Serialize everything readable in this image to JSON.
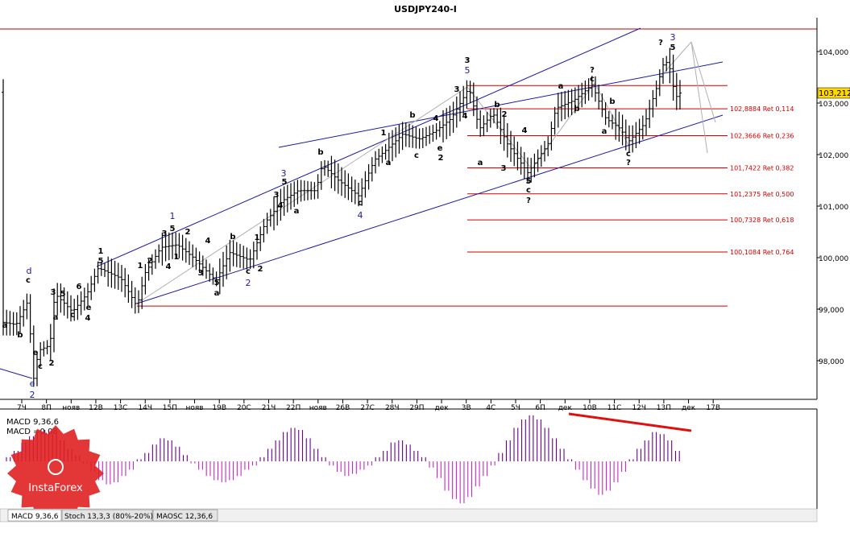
{
  "chart_data": {
    "type": "ohlc",
    "title": "USDJPY240-I",
    "y_ticks": [
      "104,000",
      "103,000",
      "102,000",
      "101,000",
      "100,000",
      "99,000",
      "98,000"
    ],
    "y_values": [
      104,
      103,
      102,
      101,
      100,
      99,
      98
    ],
    "ylim": [
      97.3,
      104.55
    ],
    "current_price": "103,212",
    "current_value": 103.212,
    "x_ticks": [
      "7Ч",
      "8П",
      "нояв",
      "12В",
      "13С",
      "14Ч",
      "15П",
      "нояв",
      "19В",
      "20С",
      "21Ч",
      "22П",
      "нояв",
      "26В",
      "27С",
      "28Ч",
      "29П",
      "дек",
      "3В",
      "4С",
      "5Ч",
      "6П",
      "дек",
      "10В",
      "11С",
      "12Ч",
      "13П",
      "дек",
      "17В"
    ],
    "retracements": [
      {
        "label": "102,8884 Ret 0,114",
        "value": 102.8884
      },
      {
        "label": "102,3666 Ret 0,236",
        "value": 102.3666
      },
      {
        "label": "101,7422 Ret 0,382",
        "value": 101.7422
      },
      {
        "label": "101,2375 Ret 0,500",
        "value": 101.2375
      },
      {
        "label": "100,7328 Ret 0,618",
        "value": 100.7328
      },
      {
        "label": "100,1084 Ret 0,764",
        "value": 100.1084
      }
    ],
    "horizontal_levels": [
      103.34,
      99.06
    ],
    "wave_labels_black": [
      "a",
      "b",
      "3",
      "c",
      "a",
      "e",
      "4",
      "d",
      "c",
      "2",
      "1",
      "5",
      "1",
      "2",
      "3",
      "4",
      "5",
      "3",
      "4",
      "1",
      "2",
      "b",
      "a",
      "c",
      "2",
      "3",
      "5",
      "4",
      "3",
      "1",
      "4",
      "a",
      "4",
      "1",
      "b",
      "a",
      "c",
      "b",
      "c",
      "e",
      "2",
      "3",
      "5",
      "3",
      "4",
      "b",
      "a",
      "5",
      "c",
      "?",
      "2",
      "4",
      "3",
      "a",
      "b",
      "?",
      "a",
      "c",
      "b",
      "a",
      "b",
      "?",
      "c",
      "?",
      "?",
      "5"
    ],
    "wave_labels_blue": [
      "d",
      "2",
      "1",
      "2",
      "3",
      "4",
      "3",
      "5",
      "3"
    ],
    "indicator": {
      "name_line1": "MACD 9,36,6",
      "name_line2": "MACD =0,08",
      "histogram": [
        0.2,
        0.5,
        0.9,
        1.2,
        1.4,
        1.5,
        1.3,
        1.0,
        0.6,
        0.3,
        -0.1,
        -0.5,
        -0.9,
        -1.1,
        -1.0,
        -0.7,
        -0.4,
        0.1,
        0.4,
        0.8,
        1.1,
        1.0,
        0.7,
        0.3,
        -0.1,
        -0.4,
        -0.7,
        -0.9,
        -1.0,
        -0.9,
        -0.7,
        -0.4,
        -0.2,
        0.2,
        0.6,
        1.0,
        1.4,
        1.6,
        1.5,
        1.1,
        0.6,
        0.2,
        -0.2,
        -0.5,
        -0.7,
        -0.6,
        -0.4,
        -0.2,
        0.2,
        0.5,
        0.9,
        1.0,
        0.8,
        0.5,
        0.2,
        -0.3,
        -0.8,
        -1.4,
        -1.8,
        -2.0,
        -1.7,
        -1.2,
        -0.7,
        -0.2,
        0.4,
        1.0,
        1.6,
        2.0,
        2.2,
        2.0,
        1.6,
        1.1,
        0.6,
        0.1,
        -0.4,
        -0.9,
        -1.3,
        -1.6,
        -1.4,
        -1.0,
        -0.5,
        0.1,
        0.6,
        1.0,
        1.4,
        1.3,
        1.0,
        0.5
      ]
    },
    "tabs": [
      "MACD 9,36,6",
      "Stoch 13,3,3 (80%-20%)",
      "MAOSC 12,36,6"
    ],
    "watermark": "InstaForex"
  },
  "colors": {
    "channel": "#1a1aa6",
    "ret": "#d00000",
    "hist": "#8a00a8",
    "bar": "#000000",
    "fan": "#b0b0b0"
  }
}
